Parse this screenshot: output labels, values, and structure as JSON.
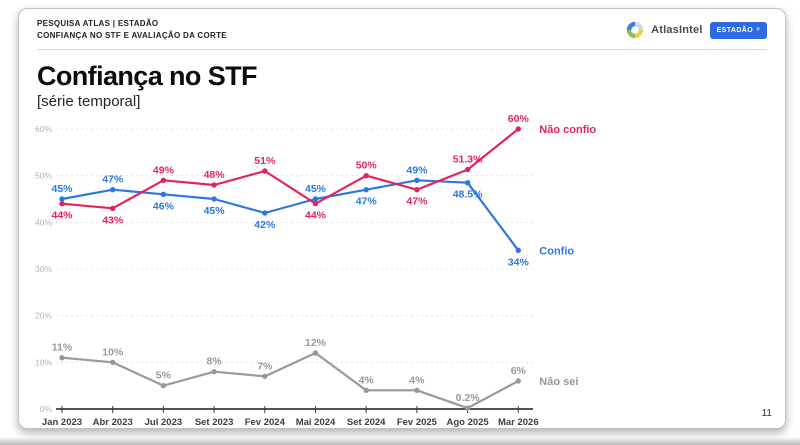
{
  "header": {
    "line1": "PESQUISA ATLAS | ESTADÃO",
    "line2": "CONFIANÇA NO STF E AVALIAÇÃO DA CORTE",
    "brand": "AtlasIntel",
    "badge": "ESTADÃO",
    "badge_color": "#2d6be0"
  },
  "title": "Confiança no STF",
  "subtitle": "[série temporal]",
  "page_number": "11",
  "chart_data": {
    "type": "line",
    "title": "Confiança no STF",
    "subtitle": "[série temporal]",
    "categories": [
      "Jan 2023",
      "Abr 2023",
      "Jul 2023",
      "Set 2023",
      "Fev 2024",
      "Mai 2024",
      "Set 2024",
      "Fev 2025",
      "Ago 2025",
      "Mar 2026"
    ],
    "series": [
      {
        "name": "Não confio",
        "color": "#e2245e",
        "values": [
          44,
          43,
          49,
          48,
          51,
          44,
          50,
          47,
          51.3,
          60
        ],
        "label_placement": "compare"
      },
      {
        "name": "Confio",
        "color": "#2e77e0",
        "values": [
          45,
          47,
          46,
          45,
          42,
          45,
          47,
          49,
          48.5,
          34
        ],
        "label_placement": "compare"
      },
      {
        "name": "Não sei",
        "color": "#999999",
        "values": [
          11,
          10,
          5,
          8,
          7,
          12,
          4,
          4,
          0.2,
          6
        ],
        "label_placement": "above"
      }
    ],
    "ylim": [
      0,
      65
    ],
    "yticks": [
      0,
      10,
      20,
      30,
      40,
      50,
      60
    ],
    "ytick_suffix": "%",
    "grid": true,
    "legend_position": "end-of-line",
    "axis_color": "#3a3a3a",
    "grid_color": "#e4e4e4",
    "tick_label_color": "#b3b3b3",
    "xlabel_color": "#3d3d3d"
  }
}
